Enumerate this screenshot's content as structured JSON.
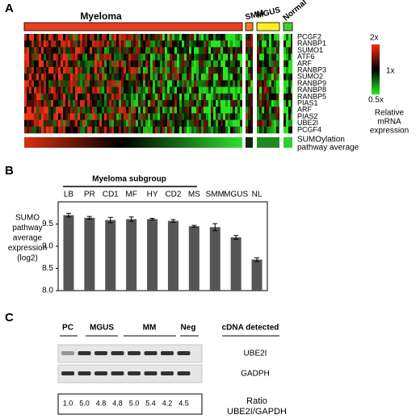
{
  "panel_a": {
    "letter": "A",
    "groups": [
      "Myeloma",
      "SMM",
      "MGUS",
      "Normal"
    ],
    "genes": [
      "PCGF2",
      "RANBP1",
      "SUMO1",
      "ATF6",
      "ARF",
      "RANBP3",
      "SUMO2",
      "RANBP9",
      "RANBP8",
      "RANBP5",
      "PIAS1",
      "ARF",
      "PIAS2",
      "UBE2I",
      "PCGF4"
    ],
    "scale_labels": [
      "2x",
      "1x",
      "0.5x"
    ],
    "scale_title": [
      "Relative",
      "mRNA",
      "expression"
    ],
    "average_label": [
      "SUMOylation",
      "pathway average"
    ]
  },
  "chart_data": {
    "type": "bar",
    "letter": "B",
    "group_label": "Myeloma subgroup",
    "ylabel": [
      "SUMO",
      "pathway",
      "average",
      "expression",
      "(log2)"
    ],
    "categories": [
      "LB",
      "PR",
      "CD1",
      "MF",
      "HY",
      "CD2",
      "MS",
      "SMM",
      "MGUS",
      "NL"
    ],
    "values": [
      9.7,
      9.64,
      9.59,
      9.61,
      9.61,
      9.57,
      9.45,
      9.43,
      9.2,
      8.7
    ],
    "errors": [
      0.04,
      0.03,
      0.06,
      0.05,
      0.02,
      0.03,
      0.02,
      0.08,
      0.04,
      0.04
    ],
    "color": "#555555",
    "ylim": [
      8.0,
      10.0
    ],
    "yticks": [
      {
        "value": 8.0,
        "label": "8.0"
      },
      {
        "value": 8.5,
        "label": "8.5"
      },
      {
        "value": 9.0,
        "label": "9.0"
      },
      {
        "value": 9.5,
        "label": "9.5"
      }
    ]
  },
  "panel_c": {
    "letter": "C",
    "lanes": [
      "PC",
      "MGUS",
      "MM",
      "Neg"
    ],
    "header": "cDNA detected",
    "gels": [
      "UBE2I",
      "GADPH"
    ],
    "ratios": [
      "1.0",
      "5.0",
      "4.8",
      "4.8",
      "5.0",
      "5.4",
      "4.2",
      "4.5"
    ],
    "ratio_label": [
      "Ratio",
      "UBE2I/GAPDH"
    ]
  }
}
